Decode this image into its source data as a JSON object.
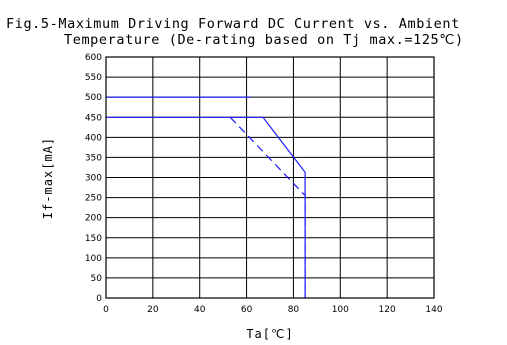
{
  "chart_data": {
    "type": "line",
    "title_line1": "Fig.5-Maximum Driving Forward DC Current vs. Ambient",
    "title_line2": "Temperature (De-rating based on Tj max.=125℃)",
    "xlabel": "Ta[℃]",
    "ylabel": "If-max[mA]",
    "xlim": [
      0,
      140
    ],
    "ylim": [
      0,
      600
    ],
    "x_ticks": [
      "0",
      "20",
      "40",
      "60",
      "80",
      "100",
      "120",
      "140"
    ],
    "y_ticks": [
      "600",
      "550",
      "500",
      "450",
      "400",
      "350",
      "300",
      "250",
      "200",
      "150",
      "100",
      "50",
      "0"
    ],
    "grid": true,
    "series": [
      {
        "style": "solid",
        "color": "#1a1aff",
        "x": [
          0,
          62
        ],
        "y": [
          500,
          500
        ]
      },
      {
        "style": "solid",
        "color": "#1a1aff",
        "x": [
          0,
          67,
          85,
          85
        ],
        "y": [
          450,
          450,
          313,
          0
        ]
      },
      {
        "style": "dashed",
        "color": "#1a1aff",
        "x": [
          53,
          85,
          85
        ],
        "y": [
          450,
          255,
          0
        ]
      }
    ]
  }
}
